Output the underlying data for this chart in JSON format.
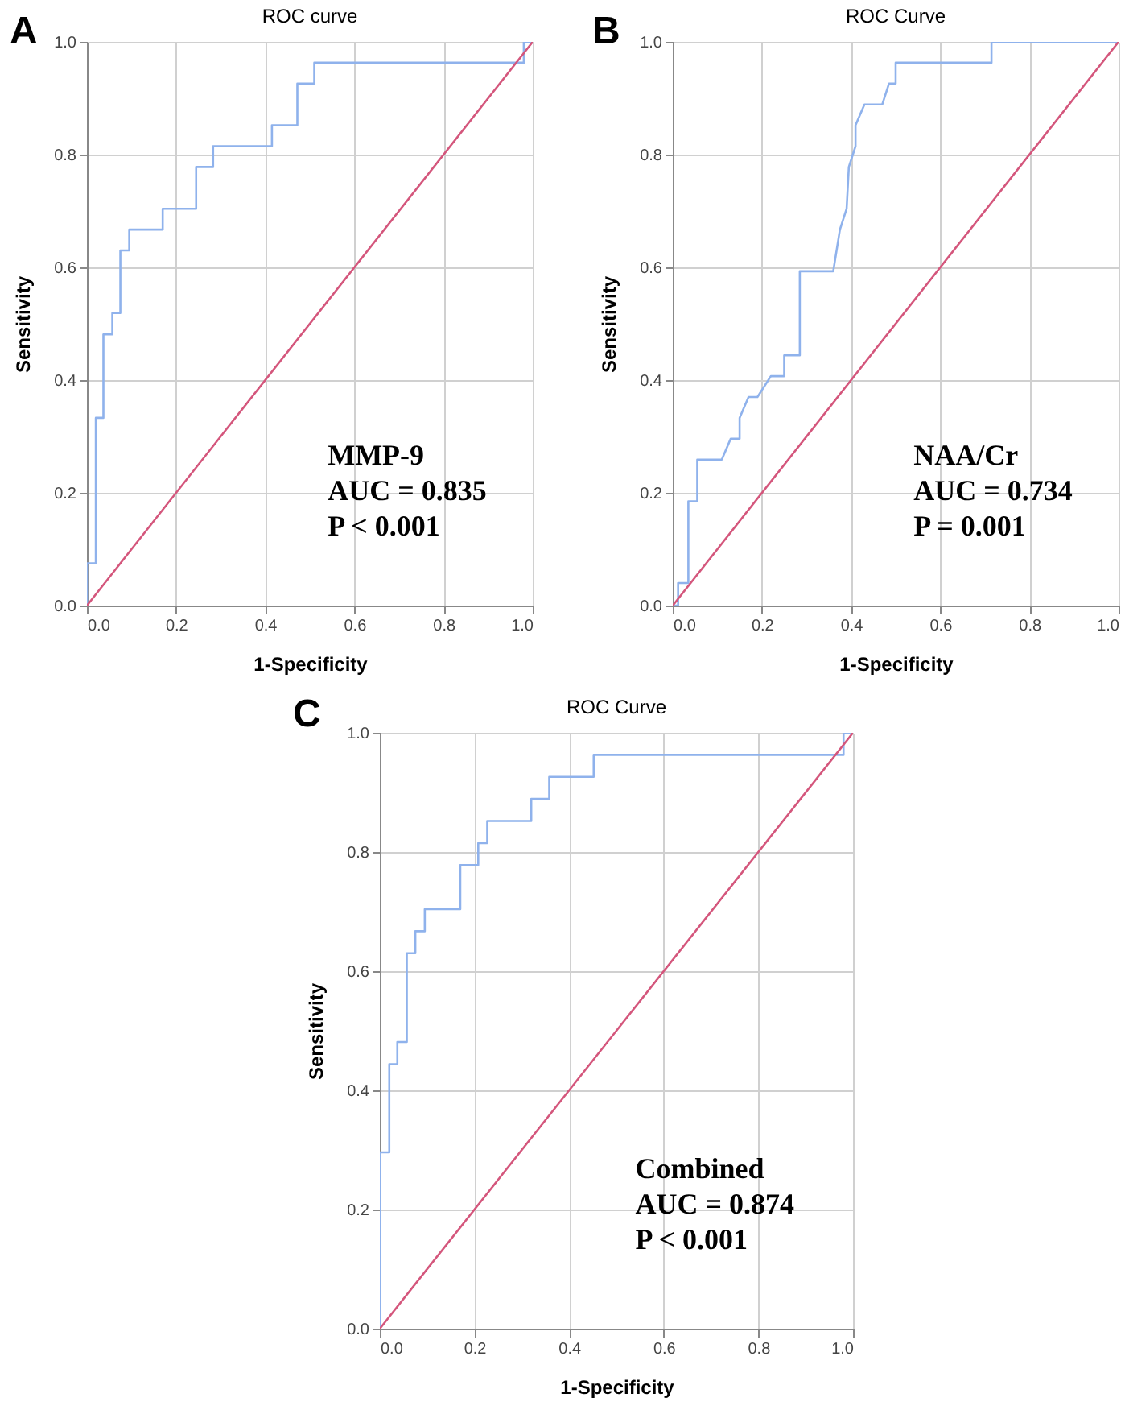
{
  "chart_data": [
    {
      "type": "line",
      "title": "ROC curve",
      "xlabel": "1-Specificity",
      "ylabel": "Sensitivity",
      "xlim": [
        0,
        1
      ],
      "ylim": [
        0,
        1
      ],
      "xticks": [
        {
          "value": 0,
          "label": "0.0"
        },
        {
          "value": 0.2,
          "label": "0.2"
        },
        {
          "value": 0.4,
          "label": "0.4"
        },
        {
          "value": 0.6,
          "label": "0.6"
        },
        {
          "value": 0.8,
          "label": "0.8"
        },
        {
          "value": 1,
          "label": "1.0"
        }
      ],
      "yticks": [
        {
          "value": 0,
          "label": "0.0"
        },
        {
          "value": 0.2,
          "label": "0.2"
        },
        {
          "value": 0.4,
          "label": "0.4"
        },
        {
          "value": 0.6,
          "label": "0.6"
        },
        {
          "value": 0.8,
          "label": "0.8"
        },
        {
          "value": 1,
          "label": "1.0"
        }
      ],
      "grid": true,
      "series": [
        {
          "color": "#8fb2ec",
          "x": [
            0,
            0,
            0.02,
            0.02,
            0.037,
            0.037,
            0.057,
            0.057,
            0.075,
            0.075,
            0.095,
            0.095,
            0.17,
            0.17,
            0.245,
            0.245,
            0.283,
            0.283,
            0.415,
            0.415,
            0.472,
            0.472,
            0.51,
            0.51,
            0.98,
            0.98,
            1
          ],
          "values": [
            0,
            0.075,
            0.075,
            0.333,
            0.333,
            0.481,
            0.481,
            0.519,
            0.519,
            0.63,
            0.63,
            0.667,
            0.667,
            0.704,
            0.704,
            0.778,
            0.778,
            0.815,
            0.815,
            0.852,
            0.852,
            0.926,
            0.926,
            0.963,
            0.963,
            1,
            1
          ]
        },
        {
          "color": "#d4567c",
          "x": [
            0,
            1
          ],
          "values": [
            0,
            1
          ]
        }
      ],
      "annotations": [
        "A",
        "MMP-9",
        "AUC = 0.835",
        "P < 0.001"
      ]
    },
    {
      "type": "line",
      "title": "ROC Curve",
      "xlabel": "1-Specificity",
      "ylabel": "Sensitivity",
      "xlim": [
        0,
        1
      ],
      "ylim": [
        0,
        1
      ],
      "xticks": [
        {
          "value": 0,
          "label": "0.0"
        },
        {
          "value": 0.2,
          "label": "0.2"
        },
        {
          "value": 0.4,
          "label": "0.4"
        },
        {
          "value": 0.6,
          "label": "0.6"
        },
        {
          "value": 0.8,
          "label": "0.8"
        },
        {
          "value": 1,
          "label": "1.0"
        }
      ],
      "yticks": [
        {
          "value": 0,
          "label": "0.0"
        },
        {
          "value": 0.2,
          "label": "0.2"
        },
        {
          "value": 0.4,
          "label": "0.4"
        },
        {
          "value": 0.6,
          "label": "0.6"
        },
        {
          "value": 0.8,
          "label": "0.8"
        },
        {
          "value": 1,
          "label": "1.0"
        }
      ],
      "grid": true,
      "series": [
        {
          "color": "#8fb2ec",
          "x": [
            0,
            0.012,
            0.012,
            0.035,
            0.035,
            0.055,
            0.055,
            0.11,
            0.13,
            0.15,
            0.15,
            0.17,
            0.19,
            0.22,
            0.25,
            0.25,
            0.285,
            0.285,
            0.36,
            0.375,
            0.39,
            0.395,
            0.41,
            0.41,
            0.43,
            0.47,
            0.485,
            0.5,
            0.5,
            0.715,
            0.715,
            1
          ],
          "values": [
            0,
            0,
            0.04,
            0.04,
            0.185,
            0.185,
            0.259,
            0.259,
            0.296,
            0.296,
            0.333,
            0.37,
            0.37,
            0.407,
            0.407,
            0.444,
            0.444,
            0.593,
            0.593,
            0.667,
            0.704,
            0.778,
            0.815,
            0.852,
            0.889,
            0.889,
            0.926,
            0.926,
            0.963,
            0.963,
            1,
            1
          ]
        },
        {
          "color": "#d4567c",
          "x": [
            0,
            1
          ],
          "values": [
            0,
            1
          ]
        }
      ],
      "annotations": [
        "B",
        "NAA/Cr",
        "AUC = 0.734",
        "P = 0.001"
      ]
    },
    {
      "type": "line",
      "title": "ROC Curve",
      "xlabel": "1-Specificity",
      "ylabel": "Sensitivity",
      "xlim": [
        0,
        1
      ],
      "ylim": [
        0,
        1
      ],
      "xticks": [
        {
          "value": 0,
          "label": "0.0"
        },
        {
          "value": 0.2,
          "label": "0.2"
        },
        {
          "value": 0.4,
          "label": "0.4"
        },
        {
          "value": 0.6,
          "label": "0.6"
        },
        {
          "value": 0.8,
          "label": "0.8"
        },
        {
          "value": 1,
          "label": "1.0"
        }
      ],
      "yticks": [
        {
          "value": 0,
          "label": "0.0"
        },
        {
          "value": 0.2,
          "label": "0.2"
        },
        {
          "value": 0.4,
          "label": "0.4"
        },
        {
          "value": 0.6,
          "label": "0.6"
        },
        {
          "value": 0.8,
          "label": "0.8"
        },
        {
          "value": 1,
          "label": "1.0"
        }
      ],
      "grid": true,
      "series": [
        {
          "color": "#8fb2ec",
          "x": [
            0,
            0,
            0.02,
            0.02,
            0.037,
            0.037,
            0.057,
            0.057,
            0.075,
            0.075,
            0.095,
            0.095,
            0.17,
            0.17,
            0.208,
            0.208,
            0.227,
            0.227,
            0.32,
            0.32,
            0.358,
            0.358,
            0.452,
            0.452,
            0.98,
            0.98,
            1
          ],
          "values": [
            0,
            0.296,
            0.296,
            0.444,
            0.444,
            0.481,
            0.481,
            0.63,
            0.63,
            0.667,
            0.667,
            0.704,
            0.704,
            0.778,
            0.778,
            0.815,
            0.815,
            0.852,
            0.852,
            0.889,
            0.889,
            0.926,
            0.926,
            0.963,
            0.963,
            1,
            1
          ]
        },
        {
          "color": "#d4567c",
          "x": [
            0,
            1
          ],
          "values": [
            0,
            1
          ]
        }
      ],
      "annotations": [
        "C",
        "Combined",
        "AUC = 0.874",
        "P < 0.001"
      ]
    }
  ]
}
